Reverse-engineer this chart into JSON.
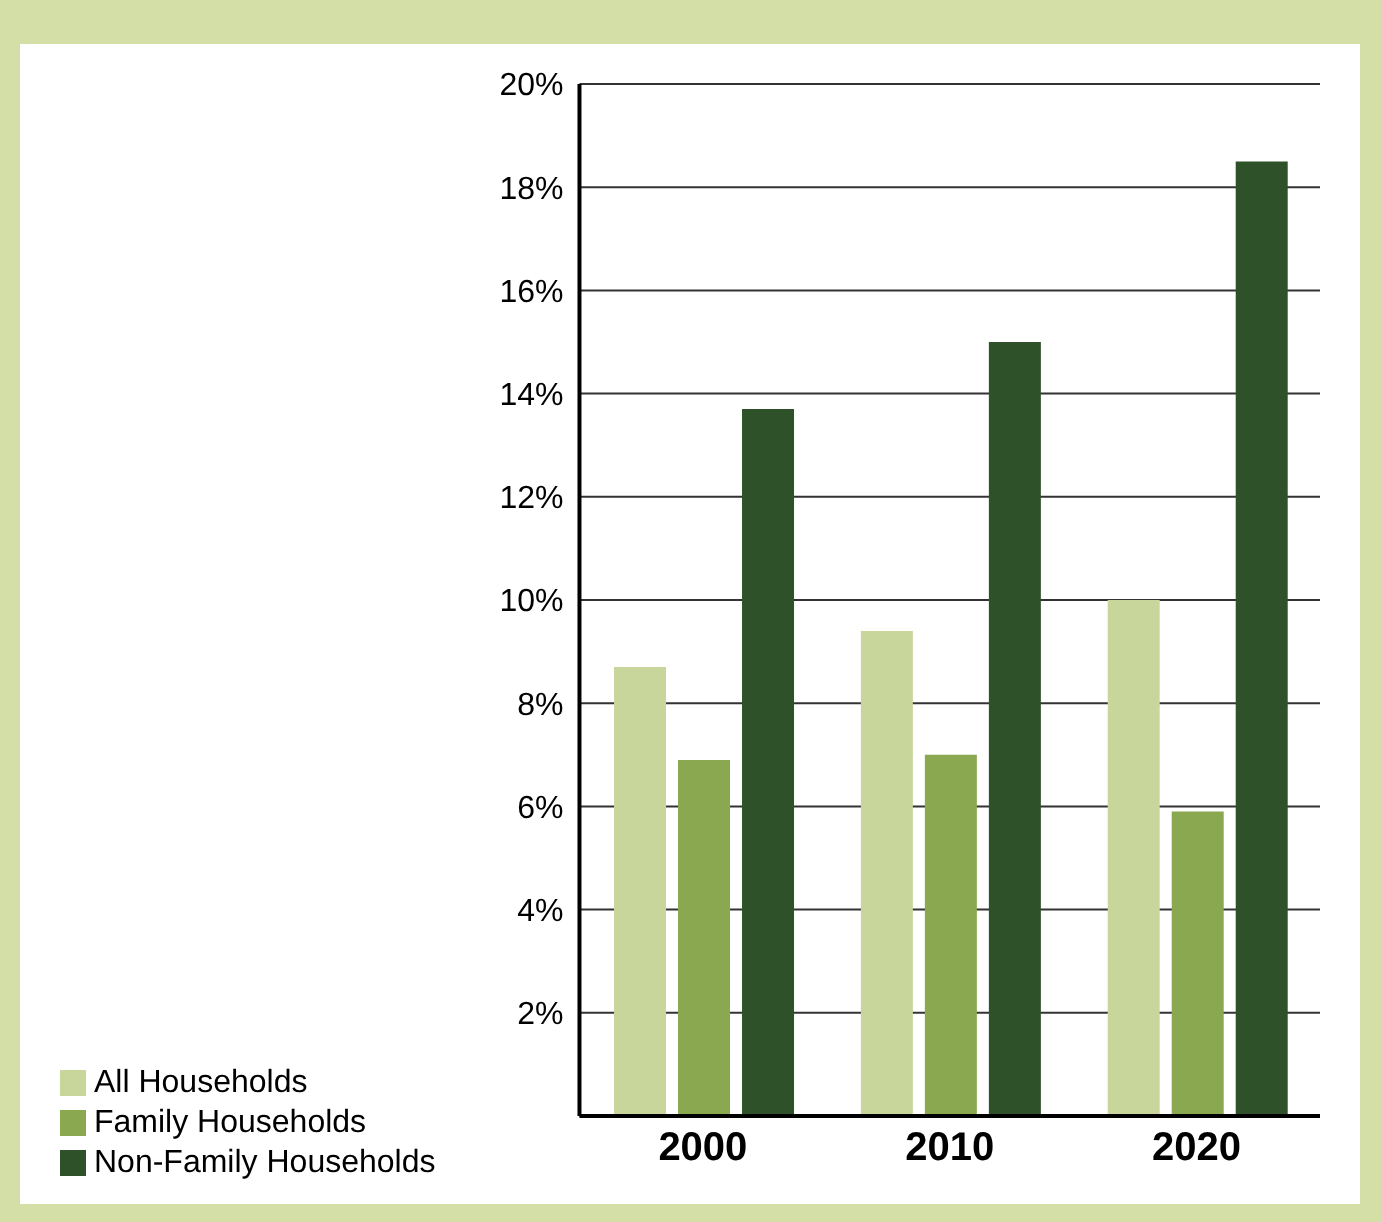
{
  "chart_data": {
    "type": "bar",
    "categories": [
      "2000",
      "2010",
      "2020"
    ],
    "series": [
      {
        "name": "All Households",
        "color": "#c8d69c",
        "values": [
          8.7,
          9.4,
          10.0
        ]
      },
      {
        "name": "Family Households",
        "color": "#8aa850",
        "values": [
          6.9,
          7.0,
          5.9
        ]
      },
      {
        "name": "Non-Family Households",
        "color": "#2f5129",
        "values": [
          13.7,
          15.0,
          18.5
        ]
      }
    ],
    "ylim": [
      0,
      20
    ],
    "yticks": [
      {
        "value": 2,
        "label": "2%"
      },
      {
        "value": 4,
        "label": "4%"
      },
      {
        "value": 6,
        "label": "6%"
      },
      {
        "value": 8,
        "label": "8%"
      },
      {
        "value": 10,
        "label": "10%"
      },
      {
        "value": 12,
        "label": "12%"
      },
      {
        "value": 14,
        "label": "14%"
      },
      {
        "value": 16,
        "label": "16%"
      },
      {
        "value": 18,
        "label": "18%"
      },
      {
        "value": 20,
        "label": "20%"
      }
    ],
    "grid": "y",
    "legend": "bottom left"
  }
}
